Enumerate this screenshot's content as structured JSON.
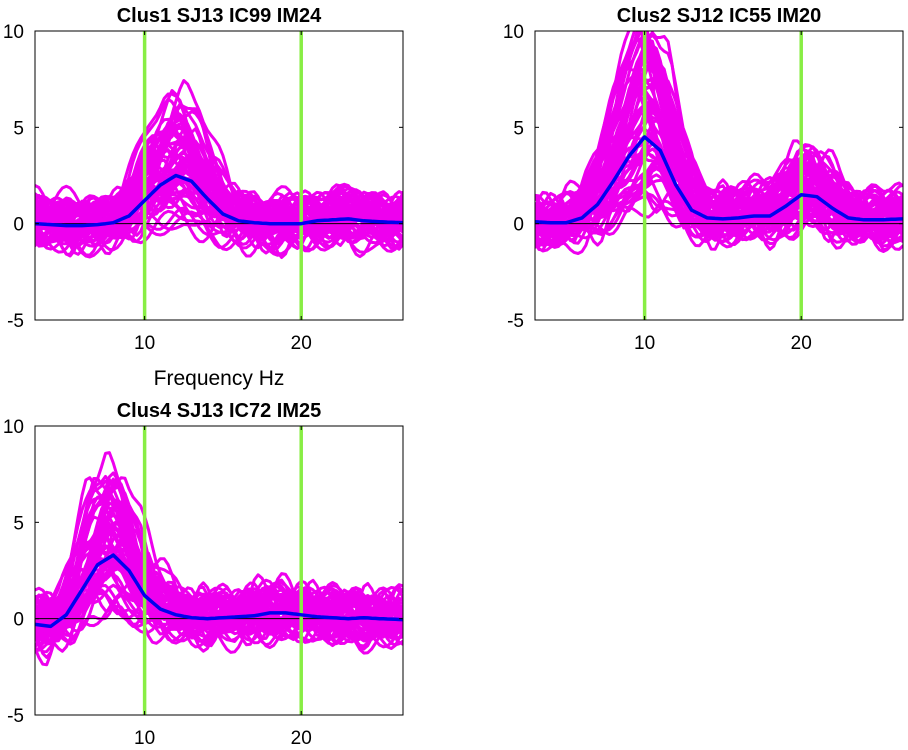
{
  "figure": {
    "background": "#ffffff"
  },
  "chart_data": [
    {
      "type": "line",
      "title": "Clus1 SJ13 IC99 IM24",
      "xlabel": "",
      "ylabel": "",
      "xlim": [
        3,
        26.5
      ],
      "ylim": [
        -5,
        10
      ],
      "xticks": [
        10,
        20
      ],
      "yticks": [
        -5,
        0,
        5,
        10
      ],
      "markers": [
        10,
        20
      ],
      "colors": {
        "component": "#ee00ee",
        "mean": "#0000ee",
        "marker": "#88ee44",
        "zero": "#000000"
      },
      "n_components": 60,
      "mean": {
        "name": "mean",
        "x": [
          3,
          4,
          5,
          6,
          7,
          8,
          9,
          10,
          11,
          12,
          13,
          14,
          15,
          16,
          17,
          18,
          19,
          20,
          21,
          22,
          23,
          24,
          25,
          26.5
        ],
        "values": [
          0.0,
          -0.05,
          -0.1,
          -0.1,
          -0.05,
          0.05,
          0.4,
          1.2,
          2.0,
          2.5,
          2.2,
          1.3,
          0.5,
          0.15,
          0.05,
          0.0,
          0.0,
          0.0,
          0.15,
          0.2,
          0.25,
          0.15,
          0.1,
          0.05
        ]
      }
    },
    {
      "type": "line",
      "title": "Clus2 SJ12 IC55 IM20",
      "xlabel": "",
      "ylabel": "",
      "xlim": [
        3,
        26.5
      ],
      "ylim": [
        -5,
        10
      ],
      "xticks": [
        10,
        20
      ],
      "yticks": [
        -5,
        0,
        5,
        10
      ],
      "markers": [
        10,
        20
      ],
      "colors": {
        "component": "#ee00ee",
        "mean": "#0000ee",
        "marker": "#88ee44",
        "zero": "#000000"
      },
      "n_components": 60,
      "mean": {
        "name": "mean",
        "x": [
          3,
          4,
          5,
          6,
          7,
          8,
          9,
          10,
          11,
          12,
          13,
          14,
          15,
          16,
          17,
          18,
          19,
          20,
          21,
          22,
          23,
          24,
          25,
          26.5
        ],
        "values": [
          0.1,
          0.05,
          0.05,
          0.3,
          1.0,
          2.2,
          3.5,
          4.5,
          3.8,
          2.0,
          0.7,
          0.3,
          0.25,
          0.3,
          0.4,
          0.4,
          0.9,
          1.5,
          1.4,
          0.8,
          0.3,
          0.2,
          0.2,
          0.25
        ]
      }
    },
    {
      "type": "line",
      "title": "Clus4 SJ13 IC72 IM25",
      "xlabel": "",
      "ylabel": "",
      "xlim": [
        3,
        26.5
      ],
      "ylim": [
        -5,
        10
      ],
      "xticks": [
        10,
        20
      ],
      "yticks": [
        -5,
        0,
        5,
        10
      ],
      "markers": [
        10,
        20
      ],
      "colors": {
        "component": "#ee00ee",
        "mean": "#0000ee",
        "marker": "#88ee44",
        "zero": "#000000"
      },
      "n_components": 60,
      "mean": {
        "name": "mean",
        "x": [
          3,
          4,
          5,
          6,
          7,
          8,
          9,
          10,
          11,
          12,
          13,
          14,
          15,
          16,
          17,
          18,
          19,
          20,
          21,
          22,
          23,
          24,
          25,
          26.5
        ],
        "values": [
          -0.3,
          -0.4,
          0.2,
          1.5,
          2.8,
          3.3,
          2.5,
          1.2,
          0.5,
          0.2,
          0.05,
          0.0,
          0.05,
          0.1,
          0.15,
          0.3,
          0.3,
          0.2,
          0.1,
          0.05,
          0.0,
          0.05,
          0.0,
          -0.05
        ]
      }
    }
  ],
  "shared_xlabel": "Frequency Hz"
}
